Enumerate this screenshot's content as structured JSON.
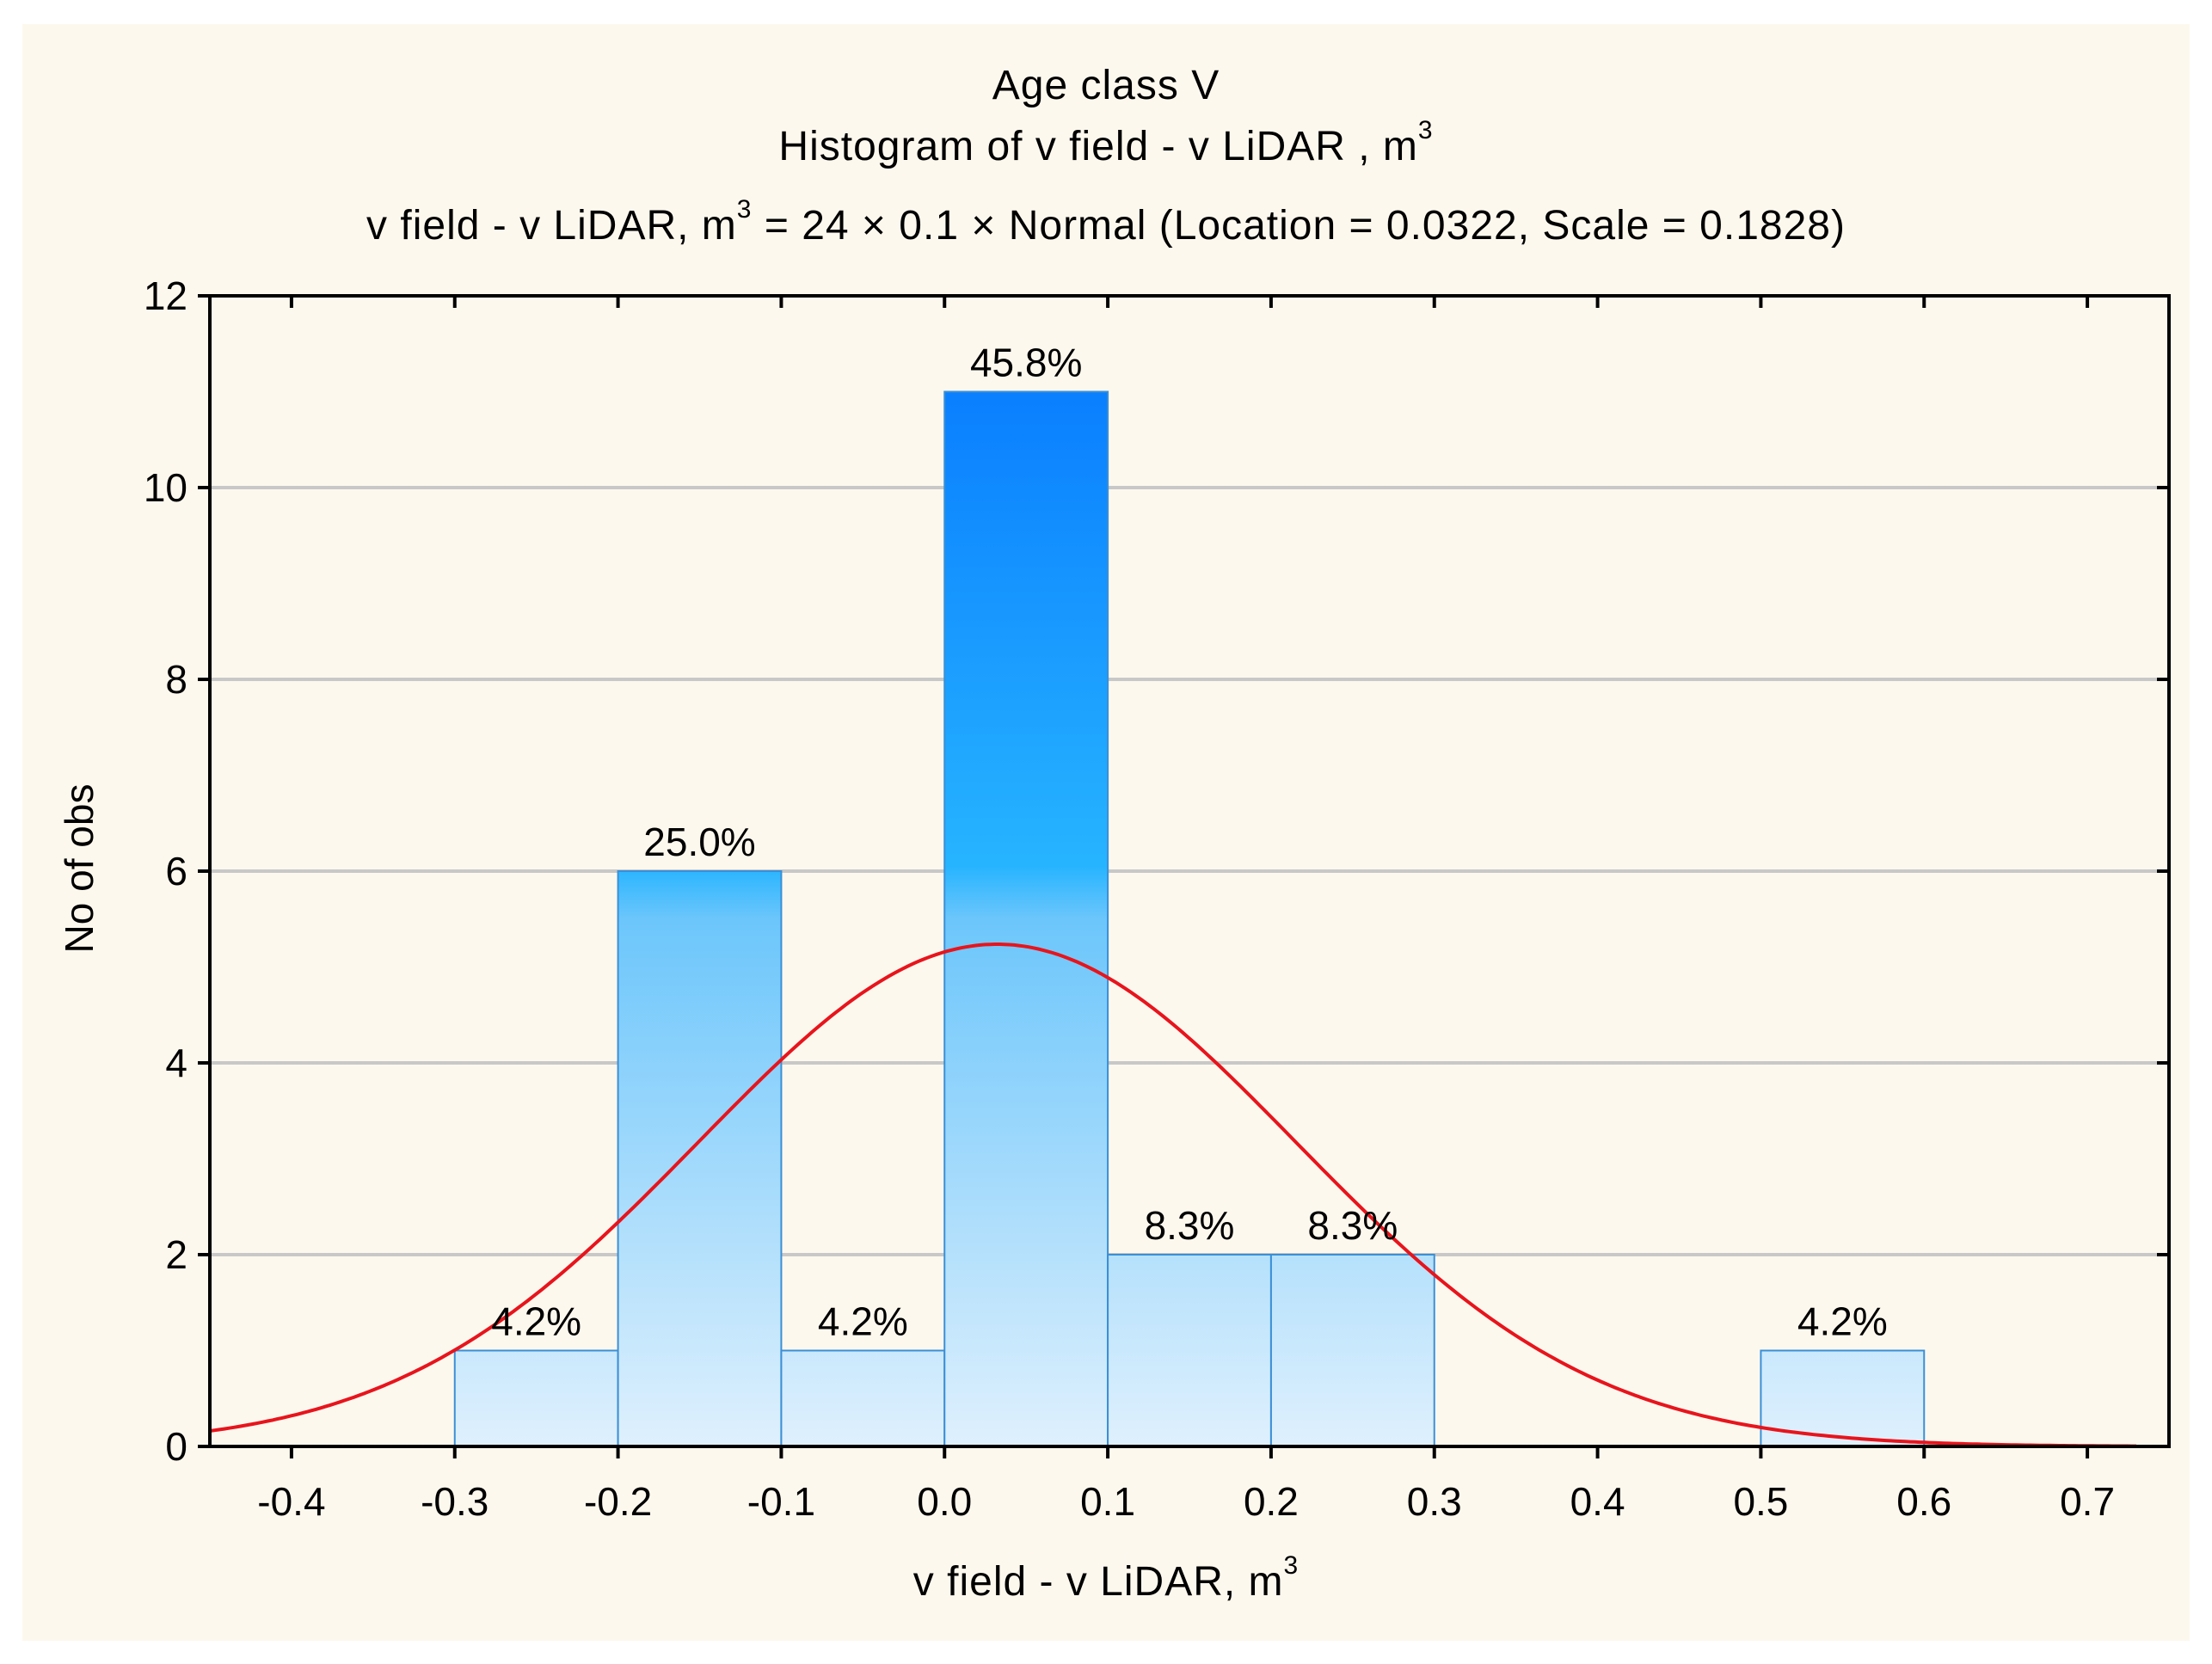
{
  "titles": {
    "line1": "Age class V",
    "line2_prefix": "Histogram of  v  field - v  LiDAR , m",
    "line2_sup": "3",
    "line3_prefix": "v  field - v  LiDAR, m",
    "line3_sup": "3",
    "line3_suffix": " = 24 × 0.1 × Normal (Location = 0.0322, Scale = 0.1828)"
  },
  "chart_data": {
    "type": "bar",
    "title": "Age class V",
    "subtitle": "Histogram of v field - v LiDAR , m3",
    "fit_label": "v field - v LiDAR, m3 = 24 × 0.1 × Normal (Location = 0.0322, Scale = 0.1828)",
    "xlabel_prefix": "v  field - v  LiDAR, m",
    "xlabel_sup": "3",
    "ylabel": "No of obs",
    "xlim": [
      -0.45,
      0.75
    ],
    "ylim": [
      0,
      12
    ],
    "xticks": [
      -0.4,
      -0.3,
      -0.2,
      -0.1,
      0.0,
      0.1,
      0.2,
      0.3,
      0.4,
      0.5,
      0.6,
      0.7
    ],
    "xtick_labels": [
      "-0.4",
      "-0.3",
      "-0.2",
      "-0.1",
      "0.0",
      "0.1",
      "0.2",
      "0.3",
      "0.4",
      "0.5",
      "0.6",
      "0.7"
    ],
    "yticks": [
      0,
      2,
      4,
      6,
      8,
      10,
      12
    ],
    "ytick_labels": [
      "0",
      "2",
      "4",
      "6",
      "8",
      "10",
      "12"
    ],
    "grid": true,
    "bins": [
      {
        "from": -0.3,
        "to": -0.2,
        "count": 1,
        "label": "4.2%"
      },
      {
        "from": -0.2,
        "to": -0.1,
        "count": 6,
        "label": "25.0%"
      },
      {
        "from": -0.1,
        "to": 0.0,
        "count": 1,
        "label": "4.2%"
      },
      {
        "from": 0.0,
        "to": 0.1,
        "count": 11,
        "label": "45.8%"
      },
      {
        "from": 0.1,
        "to": 0.2,
        "count": 2,
        "label": "8.3%"
      },
      {
        "from": 0.2,
        "to": 0.3,
        "count": 2,
        "label": "8.3%"
      },
      {
        "from": 0.5,
        "to": 0.6,
        "count": 1,
        "label": "4.2%"
      }
    ],
    "normal_fit": {
      "n": 24,
      "bin_width": 0.1,
      "location": 0.0322,
      "scale": 0.1828,
      "color": "#e8141c"
    },
    "colors": {
      "bar_top": "#0a7fff",
      "bar_mid": "#27b4ff",
      "bar_bottom": "#dff0fd",
      "bar_edge": "#3b8fd6",
      "grid": "#c8c8c8"
    }
  }
}
